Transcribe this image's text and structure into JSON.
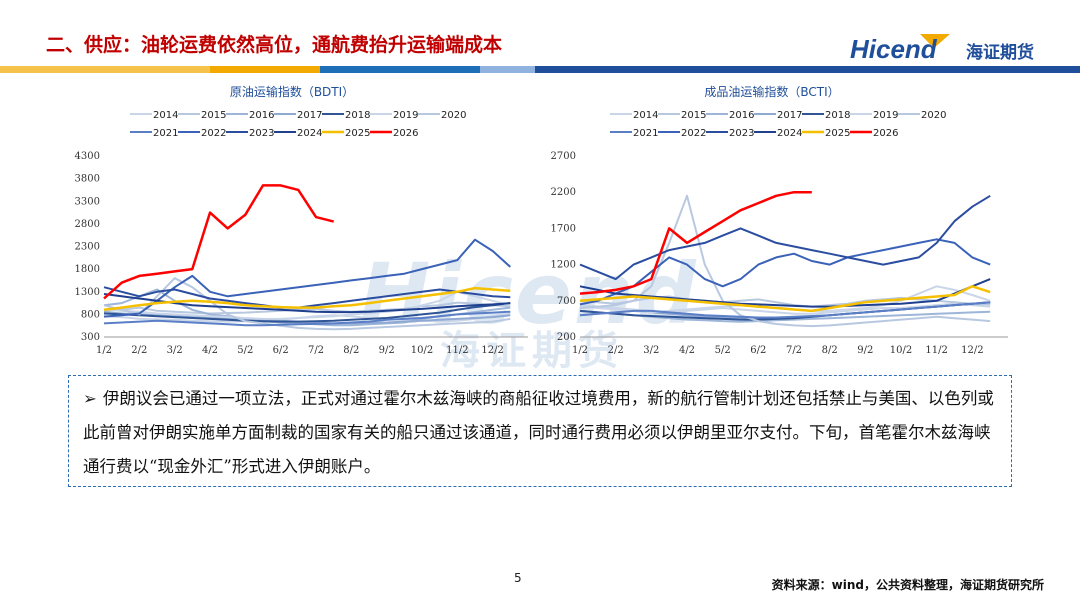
{
  "page": {
    "title": "二、供应：油轮运费依然高位，通航费抬升运输端成本",
    "logo_text": "Hicend",
    "logo_cn": "海证期货",
    "watermark": "Hicend",
    "watermark_cn": "海证期货",
    "note": "伊朗议会已通过一项立法，正式对通过霍尔木兹海峡的商船征收过境费用，新的航行管制计划还包括禁止与美国、以色列或此前曾对伊朗实施单方面制裁的国家有关的船只通过该通道，同时通行费用必须以伊朗里亚尔支付。下旬，首笔霍尔木兹海峡通行费以“现金外汇”形式进入伊朗账户。",
    "page_number": "5",
    "source": "资料来源：wind，公共资料整理，海证期货研究所",
    "colors": {
      "title": "#c00000",
      "accent_orange": "#f2a900",
      "accent_blue": "#1f4e9a",
      "light_blue": "#8fb3de"
    }
  },
  "chart_data": [
    {
      "type": "line",
      "title": "原油运输指数（BDTI）",
      "x_ticks": [
        "1/2",
        "2/2",
        "3/2",
        "4/2",
        "5/2",
        "6/2",
        "7/2",
        "8/2",
        "9/2",
        "10/2",
        "11/2",
        "12/2"
      ],
      "ylim": [
        300,
        4300
      ],
      "y_ticks": [
        300,
        800,
        1300,
        1800,
        2300,
        2800,
        3300,
        3800,
        4300
      ],
      "legend": [
        "2014",
        "2015",
        "2016",
        "2017",
        "2018",
        "2019",
        "2020",
        "2021",
        "2022",
        "2023",
        "2024",
        "2025",
        "2026"
      ],
      "series": [
        {
          "name": "2014",
          "color": "#c9d5e8",
          "width": 2,
          "values": [
            760,
            740,
            700,
            690,
            680,
            660,
            650,
            640,
            650,
            660,
            680,
            720,
            760,
            780,
            760,
            720,
            700,
            680,
            660,
            650,
            660,
            700,
            760,
            820
          ]
        },
        {
          "name": "2015",
          "color": "#b8c8e0",
          "width": 2,
          "values": [
            880,
            900,
            950,
            880,
            860,
            840,
            820,
            830,
            840,
            860,
            880,
            900,
            920,
            880,
            860,
            880,
            900,
            920,
            980,
            1000,
            1060,
            1040,
            1000,
            980
          ]
        },
        {
          "name": "2016",
          "color": "#9db5d8",
          "width": 2,
          "values": [
            1000,
            1050,
            1200,
            1350,
            1100,
            900,
            800,
            760,
            700,
            650,
            620,
            600,
            580,
            560,
            560,
            580,
            600,
            620,
            700,
            760,
            800,
            850,
            900,
            950
          ]
        },
        {
          "name": "2017",
          "color": "#8fa9d3",
          "width": 2,
          "values": [
            850,
            820,
            800,
            780,
            760,
            740,
            720,
            700,
            690,
            680,
            660,
            640,
            620,
            600,
            600,
            610,
            620,
            640,
            660,
            680,
            700,
            720,
            740,
            780
          ]
        },
        {
          "name": "2018",
          "color": "#2f5597",
          "width": 2,
          "values": [
            820,
            800,
            780,
            760,
            740,
            720,
            700,
            680,
            660,
            650,
            640,
            640,
            650,
            660,
            680,
            700,
            720,
            760,
            800,
            840,
            900,
            960,
            1000,
            1050
          ]
        },
        {
          "name": "2019",
          "color": "#c9d5e8",
          "width": 2,
          "values": [
            900,
            880,
            860,
            820,
            800,
            780,
            760,
            740,
            720,
            700,
            700,
            720,
            740,
            760,
            800,
            820,
            860,
            900,
            1000,
            1100,
            1300,
            1200,
            1100,
            1000
          ]
        },
        {
          "name": "2020",
          "color": "#b8c8e0",
          "width": 2,
          "values": [
            1000,
            900,
            800,
            1200,
            1600,
            1400,
            1100,
            800,
            650,
            600,
            550,
            500,
            480,
            470,
            480,
            500,
            520,
            540,
            560,
            580,
            600,
            620,
            640,
            700
          ]
        },
        {
          "name": "2021",
          "color": "#5b7fc7",
          "width": 2,
          "values": [
            600,
            620,
            640,
            660,
            640,
            620,
            600,
            580,
            560,
            560,
            570,
            580,
            590,
            600,
            620,
            640,
            680,
            700,
            720,
            760,
            800,
            820,
            840,
            860
          ]
        },
        {
          "name": "2022",
          "color": "#3a62b8",
          "width": 2,
          "values": [
            750,
            780,
            820,
            1100,
            1400,
            1650,
            1300,
            1200,
            1250,
            1300,
            1350,
            1400,
            1450,
            1500,
            1550,
            1600,
            1650,
            1700,
            1800,
            1900,
            2000,
            2450,
            2200,
            1850
          ]
        },
        {
          "name": "2023",
          "color": "#2b4da0",
          "width": 2,
          "values": [
            1400,
            1300,
            1200,
            1300,
            1350,
            1250,
            1150,
            1100,
            1050,
            1000,
            950,
            950,
            1000,
            1050,
            1100,
            1150,
            1200,
            1250,
            1300,
            1350,
            1300,
            1250,
            1200,
            1180
          ]
        },
        {
          "name": "2024",
          "color": "#1f3f8f",
          "width": 2,
          "values": [
            1250,
            1200,
            1150,
            1100,
            1050,
            1000,
            980,
            960,
            940,
            920,
            900,
            880,
            860,
            850,
            850,
            860,
            880,
            900,
            920,
            950,
            980,
            1000,
            1020,
            1050
          ]
        },
        {
          "name": "2025",
          "color": "#f5c000",
          "width": 2.5,
          "values": [
            900,
            950,
            1000,
            1050,
            1080,
            1100,
            1080,
            1050,
            1000,
            980,
            960,
            950,
            950,
            980,
            1000,
            1050,
            1100,
            1150,
            1200,
            1250,
            1300,
            1380,
            1350,
            1320
          ]
        },
        {
          "name": "2026",
          "color": "#ff0000",
          "width": 2.5,
          "values": [
            1150,
            1500,
            1650,
            1700,
            1750,
            1800,
            3050,
            2700,
            3000,
            3650,
            3650,
            3550,
            2950,
            2850
          ]
        }
      ]
    },
    {
      "type": "line",
      "title": "成品油运输指数（BCTI）",
      "x_ticks": [
        "1/2",
        "2/2",
        "3/2",
        "4/2",
        "5/2",
        "6/2",
        "7/2",
        "8/2",
        "9/2",
        "10/2",
        "11/2",
        "12/2"
      ],
      "ylim": [
        200,
        2700
      ],
      "y_ticks": [
        200,
        700,
        1200,
        1700,
        2200,
        2700
      ],
      "legend": [
        "2014",
        "2015",
        "2016",
        "2017",
        "2018",
        "2019",
        "2020",
        "2021",
        "2022",
        "2023",
        "2024",
        "2025",
        "2026"
      ],
      "series": [
        {
          "name": "2014",
          "color": "#c9d5e8",
          "width": 2,
          "values": [
            650,
            620,
            600,
            580,
            560,
            540,
            560,
            580,
            600,
            580,
            560,
            540,
            520,
            520,
            540,
            560,
            580,
            600,
            600,
            620,
            640,
            660,
            640,
            620
          ]
        },
        {
          "name": "2015",
          "color": "#b8c8e0",
          "width": 2,
          "values": [
            700,
            680,
            660,
            700,
            740,
            760,
            720,
            700,
            680,
            700,
            720,
            680,
            640,
            620,
            640,
            660,
            700,
            720,
            740,
            720,
            700,
            680,
            660,
            650
          ]
        },
        {
          "name": "2016",
          "color": "#9db5d8",
          "width": 2,
          "values": [
            560,
            540,
            520,
            500,
            480,
            460,
            440,
            430,
            420,
            410,
            420,
            430,
            440,
            450,
            460,
            470,
            480,
            490,
            500,
            510,
            520,
            530,
            540,
            550
          ]
        },
        {
          "name": "2017",
          "color": "#8fa9d3",
          "width": 2,
          "values": [
            500,
            520,
            540,
            560,
            540,
            520,
            500,
            480,
            470,
            460,
            450,
            460,
            470,
            480,
            500,
            520,
            540,
            560,
            580,
            600,
            620,
            640,
            660,
            680
          ]
        },
        {
          "name": "2018",
          "color": "#2f5597",
          "width": 2,
          "values": [
            560,
            540,
            520,
            500,
            490,
            480,
            470,
            460,
            450,
            440,
            440,
            450,
            460,
            480,
            500,
            520,
            540,
            560,
            580,
            600,
            620,
            640,
            660,
            680
          ]
        },
        {
          "name": "2019",
          "color": "#c9d5e8",
          "width": 2,
          "values": [
            620,
            600,
            580,
            560,
            540,
            560,
            580,
            600,
            620,
            640,
            620,
            600,
            580,
            560,
            560,
            580,
            600,
            640,
            700,
            800,
            900,
            850,
            780,
            700
          ]
        },
        {
          "name": "2020",
          "color": "#b8c8e0",
          "width": 2,
          "values": [
            600,
            620,
            640,
            700,
            900,
            1500,
            2150,
            1200,
            700,
            500,
            420,
            380,
            360,
            350,
            360,
            380,
            400,
            420,
            440,
            460,
            480,
            460,
            440,
            420
          ]
        },
        {
          "name": "2021",
          "color": "#5b7fc7",
          "width": 2,
          "values": [
            500,
            520,
            540,
            560,
            560,
            540,
            520,
            500,
            490,
            480,
            470,
            470,
            480,
            490,
            500,
            520,
            540,
            560,
            580,
            600,
            620,
            640,
            660,
            680
          ]
        },
        {
          "name": "2022",
          "color": "#3a62b8",
          "width": 2,
          "values": [
            650,
            700,
            800,
            900,
            1100,
            1300,
            1200,
            1000,
            900,
            1000,
            1200,
            1300,
            1350,
            1250,
            1200,
            1300,
            1350,
            1400,
            1450,
            1500,
            1550,
            1500,
            1300,
            1200
          ]
        },
        {
          "name": "2023",
          "color": "#2b4da0",
          "width": 2,
          "values": [
            1200,
            1100,
            1000,
            1200,
            1300,
            1400,
            1450,
            1500,
            1600,
            1700,
            1600,
            1500,
            1450,
            1400,
            1350,
            1300,
            1250,
            1200,
            1250,
            1300,
            1500,
            1800,
            2000,
            2150
          ]
        },
        {
          "name": "2024",
          "color": "#1f3f8f",
          "width": 2,
          "values": [
            900,
            850,
            800,
            780,
            760,
            740,
            720,
            700,
            680,
            660,
            650,
            640,
            630,
            620,
            620,
            630,
            640,
            650,
            660,
            680,
            700,
            800,
            900,
            1000
          ]
        },
        {
          "name": "2025",
          "color": "#f5c000",
          "width": 2.5,
          "values": [
            700,
            720,
            740,
            760,
            740,
            720,
            700,
            680,
            660,
            640,
            620,
            600,
            580,
            560,
            600,
            640,
            680,
            700,
            720,
            740,
            760,
            780,
            900,
            820
          ]
        },
        {
          "name": "2026",
          "color": "#ff0000",
          "width": 2.5,
          "values": [
            800,
            820,
            850,
            900,
            1000,
            1700,
            1500,
            1650,
            1800,
            1950,
            2050,
            2150,
            2200,
            2200
          ]
        }
      ]
    }
  ]
}
